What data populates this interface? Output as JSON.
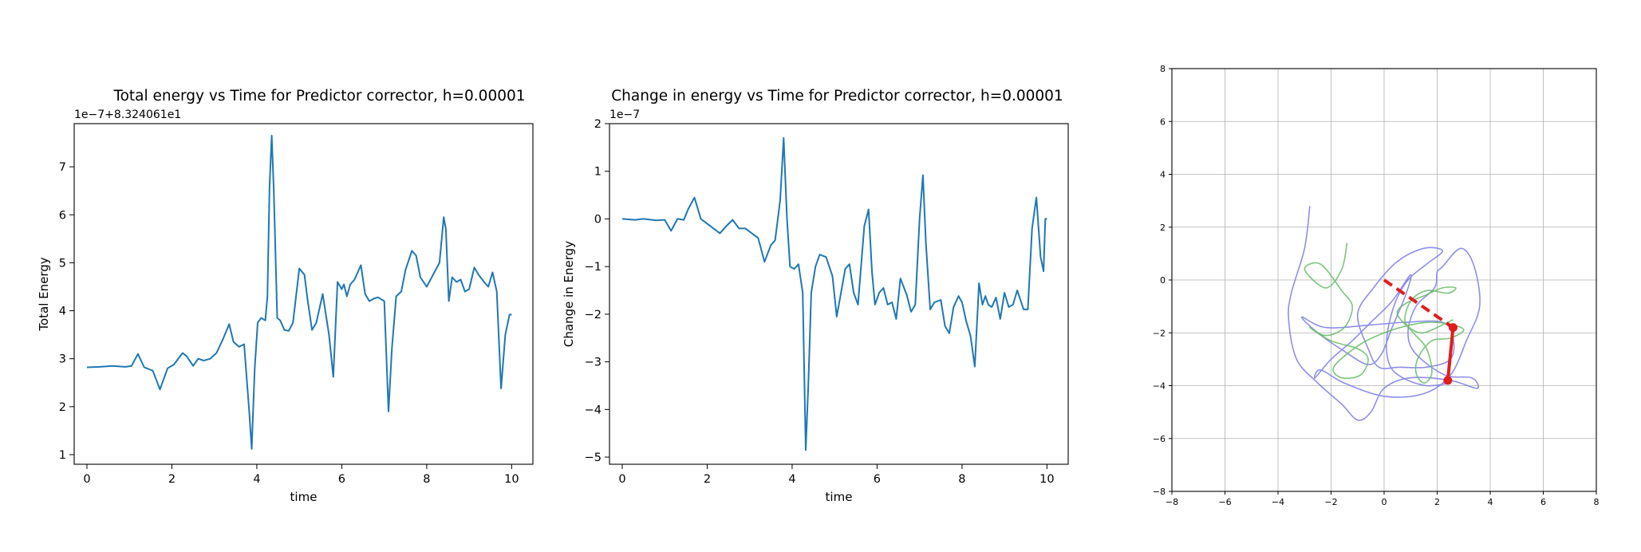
{
  "chart_data": [
    {
      "type": "line",
      "title": "Total energy vs Time for Predictor corrector, h=0.00001",
      "xlabel": "time",
      "ylabel": "Total Energy",
      "offset_text": "1e−7+8.324061e1",
      "xlim": [
        -0.3,
        10.5
      ],
      "ylim": [
        0.8,
        7.9
      ],
      "xticks": [
        0,
        2,
        4,
        6,
        8,
        10
      ],
      "yticks": [
        1,
        2,
        3,
        4,
        5,
        6,
        7
      ],
      "color": "#1f77b4",
      "series": [
        {
          "x": [
            0,
            0.3,
            0.6,
            0.9,
            1.05,
            1.2,
            1.35,
            1.55,
            1.72,
            1.9,
            2.05,
            2.25,
            2.35,
            2.5,
            2.62,
            2.75,
            2.9,
            3.05,
            3.2,
            3.35,
            3.45,
            3.58,
            3.7,
            3.82,
            3.88,
            3.95,
            4.02,
            4.1,
            4.2,
            4.25,
            4.3,
            4.35,
            4.4,
            4.48,
            4.55,
            4.65,
            4.75,
            4.85,
            5.0,
            5.12,
            5.2,
            5.3,
            5.4,
            5.55,
            5.7,
            5.8,
            5.9,
            6.0,
            6.05,
            6.12,
            6.2,
            6.3,
            6.45,
            6.55,
            6.65,
            6.75,
            6.85,
            7.0,
            7.1,
            7.18,
            7.28,
            7.4,
            7.5,
            7.65,
            7.75,
            7.85,
            8.0,
            8.15,
            8.3,
            8.4,
            8.45,
            8.52,
            8.6,
            8.7,
            8.8,
            8.9,
            9.0,
            9.12,
            9.22,
            9.35,
            9.45,
            9.55,
            9.65,
            9.75,
            9.85,
            9.95,
            10.0
          ],
          "y": [
            2.82,
            2.83,
            2.85,
            2.83,
            2.85,
            3.1,
            2.82,
            2.75,
            2.36,
            2.8,
            2.88,
            3.12,
            3.05,
            2.85,
            3.0,
            2.96,
            3.0,
            3.12,
            3.4,
            3.72,
            3.35,
            3.25,
            3.3,
            1.9,
            1.12,
            2.8,
            3.75,
            3.85,
            3.8,
            4.3,
            6.6,
            7.65,
            6.5,
            3.85,
            3.8,
            3.6,
            3.58,
            3.75,
            4.88,
            4.75,
            4.2,
            3.6,
            3.75,
            4.35,
            3.5,
            2.62,
            4.6,
            4.45,
            4.55,
            4.3,
            4.55,
            4.65,
            4.95,
            4.35,
            4.2,
            4.25,
            4.28,
            4.2,
            1.9,
            3.2,
            4.3,
            4.4,
            4.85,
            5.25,
            5.15,
            4.7,
            4.5,
            4.75,
            5.0,
            5.95,
            5.7,
            4.2,
            4.7,
            4.6,
            4.65,
            4.4,
            4.45,
            4.9,
            4.75,
            4.6,
            4.5,
            4.8,
            4.4,
            2.38,
            3.5,
            3.92,
            3.92
          ]
        }
      ]
    },
    {
      "type": "line",
      "title": "Change in energy vs Time for Predictor corrector, h=0.00001",
      "xlabel": "time",
      "ylabel": "Change in Energy",
      "offset_text": "1e−7",
      "xlim": [
        -0.3,
        10.5
      ],
      "ylim": [
        -5.15,
        2.0
      ],
      "xticks": [
        0,
        2,
        4,
        6,
        8,
        10
      ],
      "yticks": [
        -5,
        -4,
        -3,
        -2,
        -1,
        0,
        1,
        2
      ],
      "color": "#1f77b4",
      "series": [
        {
          "x": [
            0,
            0.3,
            0.5,
            0.8,
            1.0,
            1.15,
            1.3,
            1.45,
            1.55,
            1.7,
            1.85,
            2.0,
            2.15,
            2.3,
            2.45,
            2.6,
            2.75,
            2.9,
            3.05,
            3.2,
            3.35,
            3.5,
            3.6,
            3.72,
            3.8,
            3.88,
            3.95,
            4.05,
            4.15,
            4.25,
            4.32,
            4.38,
            4.45,
            4.55,
            4.65,
            4.8,
            4.95,
            5.05,
            5.15,
            5.25,
            5.35,
            5.45,
            5.55,
            5.7,
            5.8,
            5.88,
            5.95,
            6.05,
            6.15,
            6.25,
            6.35,
            6.45,
            6.55,
            6.7,
            6.8,
            6.9,
            7.0,
            7.08,
            7.15,
            7.25,
            7.35,
            7.5,
            7.6,
            7.7,
            7.8,
            7.92,
            8.0,
            8.1,
            8.2,
            8.3,
            8.4,
            8.48,
            8.55,
            8.62,
            8.7,
            8.8,
            8.9,
            9.0,
            9.1,
            9.2,
            9.3,
            9.45,
            9.55,
            9.65,
            9.75,
            9.85,
            9.92,
            9.96,
            10.0
          ],
          "y": [
            0.0,
            -0.02,
            0.0,
            -0.03,
            -0.02,
            -0.25,
            0.0,
            -0.02,
            0.2,
            0.45,
            0.0,
            -0.1,
            -0.2,
            -0.3,
            -0.15,
            -0.02,
            -0.2,
            -0.2,
            -0.3,
            -0.4,
            -0.9,
            -0.55,
            -0.45,
            0.4,
            1.7,
            0.0,
            -1.0,
            -1.05,
            -0.95,
            -1.55,
            -4.85,
            -3.5,
            -1.55,
            -1.0,
            -0.75,
            -0.8,
            -1.2,
            -2.05,
            -1.55,
            -1.05,
            -0.95,
            -1.55,
            -1.8,
            -0.15,
            0.2,
            -1.1,
            -1.8,
            -1.55,
            -1.45,
            -1.8,
            -1.75,
            -2.1,
            -1.25,
            -1.6,
            -1.95,
            -1.8,
            0.0,
            0.92,
            -0.5,
            -1.9,
            -1.75,
            -1.7,
            -2.25,
            -2.4,
            -1.85,
            -1.62,
            -1.75,
            -2.15,
            -2.45,
            -3.1,
            -1.35,
            -1.8,
            -1.62,
            -1.8,
            -1.85,
            -1.65,
            -2.1,
            -1.55,
            -1.85,
            -1.8,
            -1.5,
            -1.9,
            -1.9,
            -0.2,
            0.45,
            -0.8,
            -1.1,
            0.0,
            0.0
          ]
        }
      ]
    },
    {
      "type": "line",
      "title": "",
      "xlim": [
        -8,
        8
      ],
      "ylim": [
        -8,
        8
      ],
      "xticks": [
        -8,
        -6,
        -4,
        -2,
        0,
        2,
        4,
        6,
        8
      ],
      "yticks": [
        -8,
        -6,
        -4,
        -2,
        0,
        2,
        4,
        6,
        8
      ],
      "grid": true,
      "series": [
        {
          "color": "#7b7be6",
          "points": [
            [
              -2.8,
              2.8
            ],
            [
              -3.0,
              1.2
            ],
            [
              -3.5,
              -0.5
            ],
            [
              -3.6,
              -1.5
            ],
            [
              -3.3,
              -3.0
            ],
            [
              -2.5,
              -3.9
            ],
            [
              -1.6,
              -4.7
            ],
            [
              -1.0,
              -5.3
            ],
            [
              -0.5,
              -5.0
            ],
            [
              0.0,
              -4.1
            ],
            [
              1.0,
              -3.7
            ],
            [
              2.5,
              -3.8
            ],
            [
              3.5,
              -4.1
            ],
            [
              3.3,
              -3.7
            ],
            [
              2.3,
              -3.6
            ],
            [
              1.2,
              -2.8
            ],
            [
              0.9,
              -2.0
            ],
            [
              1.2,
              -1.0
            ],
            [
              1.9,
              -0.3
            ],
            [
              2.0,
              0.3
            ],
            [
              2.2,
              0.5
            ],
            [
              2.9,
              1.2
            ],
            [
              3.4,
              0.5
            ],
            [
              3.6,
              -1.0
            ],
            [
              3.1,
              -2.3
            ],
            [
              2.5,
              -3.6
            ],
            [
              1.5,
              -4.3
            ],
            [
              0.0,
              -4.4
            ],
            [
              -1.5,
              -3.9
            ],
            [
              -2.4,
              -3.4
            ],
            [
              -2.6,
              -3.7
            ],
            [
              -2.0,
              -3.0
            ],
            [
              -1.2,
              -2.3
            ],
            [
              -0.5,
              -1.6
            ],
            [
              0.3,
              -0.8
            ],
            [
              1.0,
              0.2
            ],
            [
              0.8,
              -0.6
            ],
            [
              0.3,
              -1.8
            ],
            [
              -0.1,
              -2.8
            ],
            [
              -0.6,
              -3.2
            ],
            [
              -1.5,
              -2.7
            ],
            [
              -2.5,
              -2.0
            ],
            [
              -3.1,
              -1.4
            ],
            [
              -2.2,
              -1.8
            ],
            [
              -0.5,
              -1.7
            ],
            [
              0.8,
              -1.6
            ],
            [
              2.2,
              -1.6
            ],
            [
              2.6,
              -2.2
            ],
            [
              2.5,
              -3.0
            ],
            [
              1.6,
              -3.3
            ],
            [
              0.6,
              -3.3
            ],
            [
              -0.2,
              -3.3
            ],
            [
              -0.6,
              -2.6
            ],
            [
              -1.0,
              -1.3
            ],
            [
              -0.4,
              -0.3
            ],
            [
              0.5,
              0.7
            ],
            [
              1.5,
              1.2
            ],
            [
              2.2,
              1.1
            ],
            [
              1.6,
              0.6
            ],
            [
              0.9,
              0.0
            ],
            [
              0.4,
              -0.9
            ],
            [
              0.1,
              -2.2
            ],
            [
              0.2,
              -3.2
            ],
            [
              0.7,
              -3.7
            ],
            [
              1.6,
              -4.0
            ],
            [
              2.5,
              -3.9
            ]
          ]
        },
        {
          "color": "#66bb66",
          "points": [
            [
              -1.4,
              1.4
            ],
            [
              -1.6,
              0.4
            ],
            [
              -2.2,
              -0.3
            ],
            [
              -3.0,
              0.4
            ],
            [
              -2.4,
              0.6
            ],
            [
              -1.6,
              -0.4
            ],
            [
              -1.2,
              -1.0
            ],
            [
              -1.5,
              -1.8
            ],
            [
              -2.2,
              -2.1
            ],
            [
              -2.8,
              -1.8
            ],
            [
              -2.0,
              -2.3
            ],
            [
              -1.0,
              -2.6
            ],
            [
              -0.6,
              -3.0
            ],
            [
              -0.9,
              -3.6
            ],
            [
              -1.6,
              -3.7
            ],
            [
              -1.9,
              -3.3
            ],
            [
              -1.0,
              -2.5
            ],
            [
              0.0,
              -2.0
            ],
            [
              1.0,
              -1.7
            ],
            [
              1.8,
              -1.6
            ],
            [
              2.6,
              -1.7
            ],
            [
              3.0,
              -1.9
            ],
            [
              2.5,
              -2.2
            ],
            [
              1.8,
              -2.3
            ],
            [
              1.3,
              -2.9
            ],
            [
              1.2,
              -3.5
            ],
            [
              1.5,
              -3.9
            ],
            [
              1.8,
              -3.5
            ],
            [
              1.6,
              -2.6
            ],
            [
              1.1,
              -2.0
            ],
            [
              0.5,
              -1.3
            ],
            [
              0.8,
              -0.9
            ],
            [
              1.5,
              -0.6
            ],
            [
              2.2,
              -0.3
            ],
            [
              2.7,
              -0.3
            ],
            [
              2.4,
              -0.5
            ],
            [
              1.6,
              -0.4
            ],
            [
              1.0,
              -0.8
            ],
            [
              0.8,
              -1.6
            ],
            [
              1.4,
              -2.0
            ],
            [
              2.2,
              -1.7
            ],
            [
              2.6,
              -1.5
            ]
          ]
        }
      ],
      "pendulum": {
        "color": "#e11d1d",
        "pivot": [
          0.0,
          0.0
        ],
        "bob1": [
          2.6,
          -1.8
        ],
        "bob2": [
          2.4,
          -3.8
        ]
      }
    }
  ]
}
